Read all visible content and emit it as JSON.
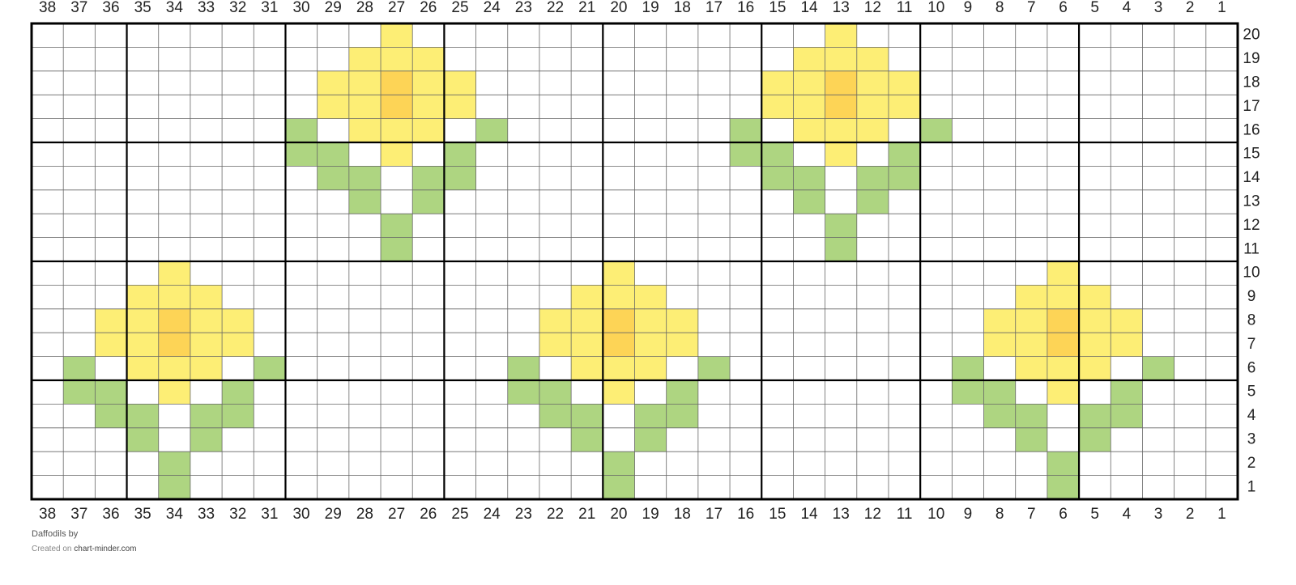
{
  "chart": {
    "columns": [
      38,
      37,
      36,
      35,
      34,
      33,
      32,
      31,
      30,
      29,
      28,
      27,
      26,
      25,
      24,
      23,
      22,
      21,
      20,
      19,
      18,
      17,
      16,
      15,
      14,
      13,
      12,
      11,
      10,
      9,
      8,
      7,
      6,
      5,
      4,
      3,
      2,
      1
    ],
    "rows": [
      20,
      19,
      18,
      17,
      16,
      15,
      14,
      13,
      12,
      11,
      10,
      9,
      8,
      7,
      6,
      5,
      4,
      3,
      2,
      1
    ],
    "palette": {
      ".": "#ffffff",
      "y": "#fdee75",
      "o": "#fdd456",
      "g": "#aed581"
    },
    "cells": [
      "...........y.............y............",
      "..........yyy...........yyy...........",
      ".........yyoyy.........yyoyy..........",
      ".........yyoyy.........yyoyy..........",
      "........g.yyy.g.......g.yyy.g.........",
      "........gg.y.g........gg.y.g..........",
      ".........gg.gg.........gg.gg..........",
      "..........g.g...........g.g...........",
      "...........g.............g............",
      "...........g.............g............",
      "....y.............y.............y.....",
      "...yyy...........yyy...........yyy....",
      "..yyoyy.........yyoyy.........yyoyy...",
      "..yyoyy.........yyoyy.........yyoyy...",
      ".g.yyy.g.......g.yyy.g.......g.yyy.g..",
      ".gg.y.g........gg.y.g........gg.y.g...",
      "..gg.gg.........gg.gg.........gg.gg...",
      "...g.g...........g.g...........g.g....",
      "....g.............g.............g.....",
      "....g.............g.............g....."
    ]
  },
  "footer": {
    "title": "Daffodils",
    "by": "by",
    "created_on": "Created on",
    "site": "chart-minder.com"
  }
}
